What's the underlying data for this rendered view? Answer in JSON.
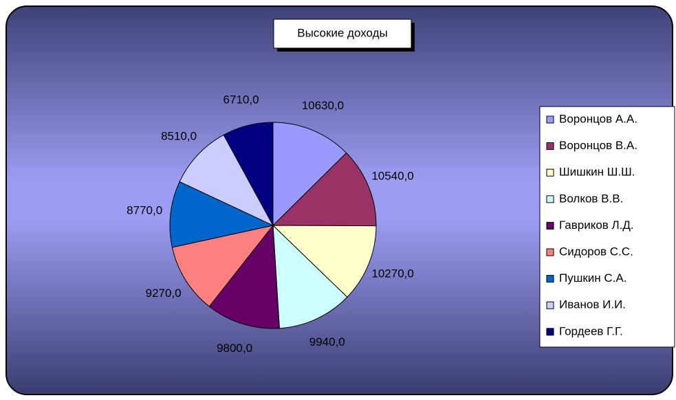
{
  "chart_data": {
    "type": "pie",
    "title": "Высокие доходы",
    "categories": [
      "Воронцов А.А.",
      "Воронцов В.А.",
      "Шишкин Ш.Ш.",
      "Волков В.В.",
      "Гавриков Л.Д.",
      "Сидоров С.С.",
      "Пушкин С.А.",
      "Иванов И.И.",
      "Гордеев Г.Г."
    ],
    "values": [
      10630,
      10540,
      10270,
      9940,
      9800,
      9270,
      8770,
      8510,
      6710
    ],
    "value_labels": [
      "10630,0",
      "10540,0",
      "10270,0",
      "9940,0",
      "9800,0",
      "9270,0",
      "8770,0",
      "8510,0",
      "6710,0"
    ],
    "colors": [
      "#9999ff",
      "#993366",
      "#ffffcc",
      "#ccffff",
      "#660066",
      "#ff8080",
      "#0066cc",
      "#ccccff",
      "#000080"
    ],
    "legend": "right"
  }
}
